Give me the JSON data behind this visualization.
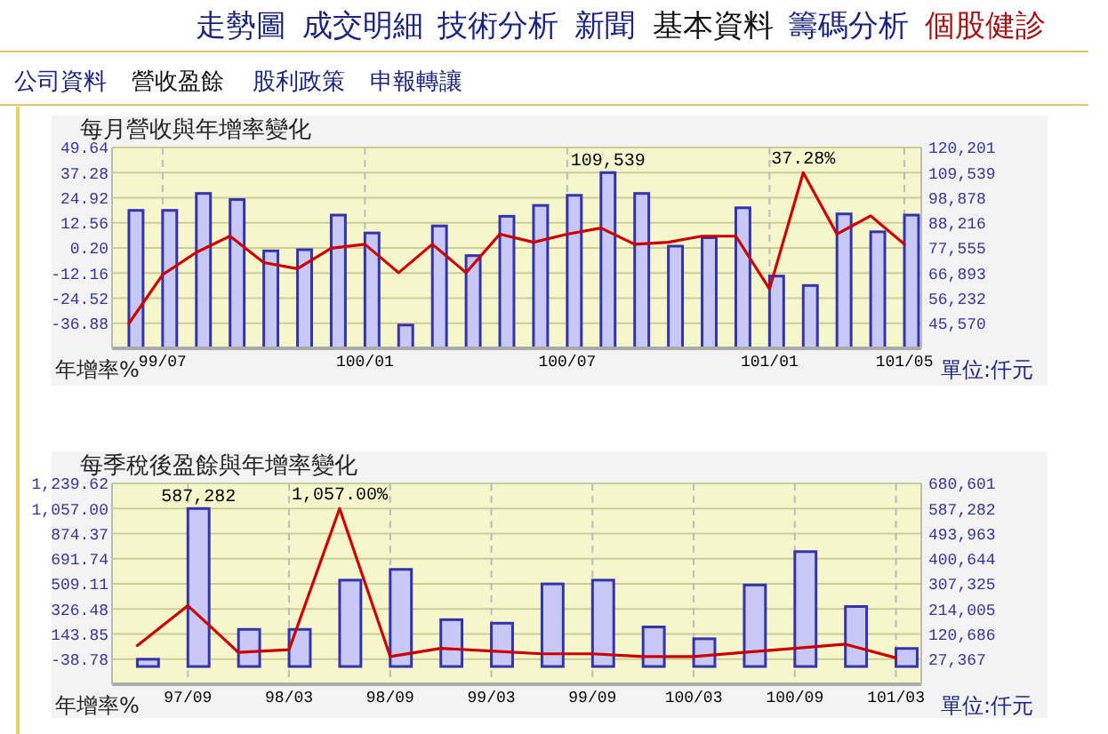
{
  "chart_data": [
    {
      "type": "other",
      "annotations": [
        "走勢圖",
        "成交明細",
        "技術分析",
        "新聞",
        "基本資料",
        "籌碼分析",
        "個股健診",
        "公司資料",
        "營收盈餘",
        "股利政策",
        "申報轉讓"
      ]
    },
    {
      "type": "bar",
      "title": "每月營收與年增率變化",
      "ylabel": "年增率%",
      "y2label": "單位:仟元",
      "grid": true,
      "categories": [
        null,
        "99/07",
        null,
        null,
        null,
        null,
        null,
        "100/01",
        null,
        null,
        null,
        null,
        null,
        "100/07",
        null,
        null,
        null,
        null,
        null,
        "101/01",
        null,
        null,
        null,
        "101/05"
      ],
      "ylim": [
        -49.24,
        49.64
      ],
      "yticks": [
        -36.88,
        -24.52,
        -12.16,
        {
          "value": 0.2,
          "label": "0.20"
        },
        12.56,
        24.92,
        37.28,
        49.64
      ],
      "y2lim": [
        34908,
        120201
      ],
      "y2ticks": [
        {
          "value": 45570,
          "label": "45,570"
        },
        {
          "value": 56232,
          "label": "56,232"
        },
        {
          "value": 66893,
          "label": "66,893"
        },
        {
          "value": 77555,
          "label": "77,555"
        },
        {
          "value": 88216,
          "label": "88,216"
        },
        {
          "value": 98878,
          "label": "98,878"
        },
        {
          "value": 109539,
          "label": "109,539"
        },
        {
          "value": 120201,
          "label": "120,201"
        }
      ],
      "series": [
        {
          "type": "bar",
          "axis": "y2",
          "color": "#c8c8f4",
          "values": [
            93500,
            93500,
            100700,
            98100,
            76300,
            76800,
            91500,
            83900,
            44800,
            86900,
            74300,
            91000,
            95600,
            99900,
            109539,
            100700,
            78300,
            81900,
            94600,
            65600,
            61600,
            92000,
            84400,
            91500
          ],
          "value_labels": [
            null,
            null,
            null,
            null,
            null,
            null,
            null,
            null,
            null,
            null,
            null,
            null,
            null,
            null,
            "109,539",
            null,
            null,
            null,
            null,
            null,
            null,
            null,
            null,
            null
          ]
        },
        {
          "type": "line",
          "color": "#cc0000",
          "values": [
            -37,
            -13,
            -2,
            6,
            -7,
            -10,
            0,
            2,
            -12,
            2,
            -12,
            7,
            3,
            7,
            10,
            2,
            3,
            6,
            6,
            -20,
            37.28,
            7,
            16,
            2
          ],
          "value_labels": [
            null,
            null,
            null,
            null,
            null,
            null,
            null,
            null,
            null,
            null,
            null,
            null,
            null,
            null,
            null,
            null,
            null,
            null,
            null,
            null,
            "37.28%",
            null,
            null,
            null
          ]
        }
      ]
    },
    {
      "type": "bar",
      "title": "每季稅後盈餘與年增率變化",
      "ylabel": "年增率%",
      "y2label": "單位:仟元",
      "grid": true,
      "categories": [
        null,
        "97/09",
        null,
        "98/03",
        null,
        "98/09",
        null,
        "99/03",
        null,
        "99/09",
        null,
        "100/03",
        null,
        "100/09",
        null,
        "101/03"
      ],
      "ylim": [
        -221.41,
        1239.62
      ],
      "yticks": [
        -38.78,
        143.85,
        326.48,
        509.11,
        691.74,
        874.37,
        {
          "value": 1057,
          "label": "1,057.00"
        },
        {
          "value": 1239.62,
          "label": "1,239.62"
        }
      ],
      "y2lim": [
        -65952,
        680601
      ],
      "y2ticks": [
        {
          "value": 27367,
          "label": "27,367"
        },
        {
          "value": 120686,
          "label": "120,686"
        },
        {
          "value": 214005,
          "label": "214,005"
        },
        {
          "value": 307325,
          "label": "307,325"
        },
        {
          "value": 400644,
          "label": "400,644"
        },
        {
          "value": 493963,
          "label": "493,963"
        },
        {
          "value": 587282,
          "label": "587,282"
        },
        {
          "value": 680601,
          "label": "680,601"
        }
      ],
      "series": [
        {
          "type": "bar",
          "axis": "y2",
          "color": "#c8c8f4",
          "values": [
            27000,
            587282,
            138000,
            138000,
            321000,
            361000,
            174000,
            161000,
            307000,
            321000,
            147000,
            103000,
            303000,
            427000,
            223000,
            67000
          ],
          "value_labels": [
            null,
            "587,282",
            null,
            null,
            null,
            null,
            null,
            null,
            null,
            null,
            null,
            null,
            null,
            null,
            null,
            null
          ]
        },
        {
          "type": "line",
          "color": "#cc0000",
          "values": [
            60,
            350,
            10,
            30,
            1057.0,
            -20,
            40,
            20,
            0,
            0,
            -20,
            -20,
            10,
            40,
            70,
            -30
          ],
          "value_labels": [
            null,
            null,
            null,
            null,
            "1,057.00%",
            null,
            null,
            null,
            null,
            null,
            null,
            null,
            null,
            null,
            null,
            null
          ]
        }
      ]
    }
  ]
}
